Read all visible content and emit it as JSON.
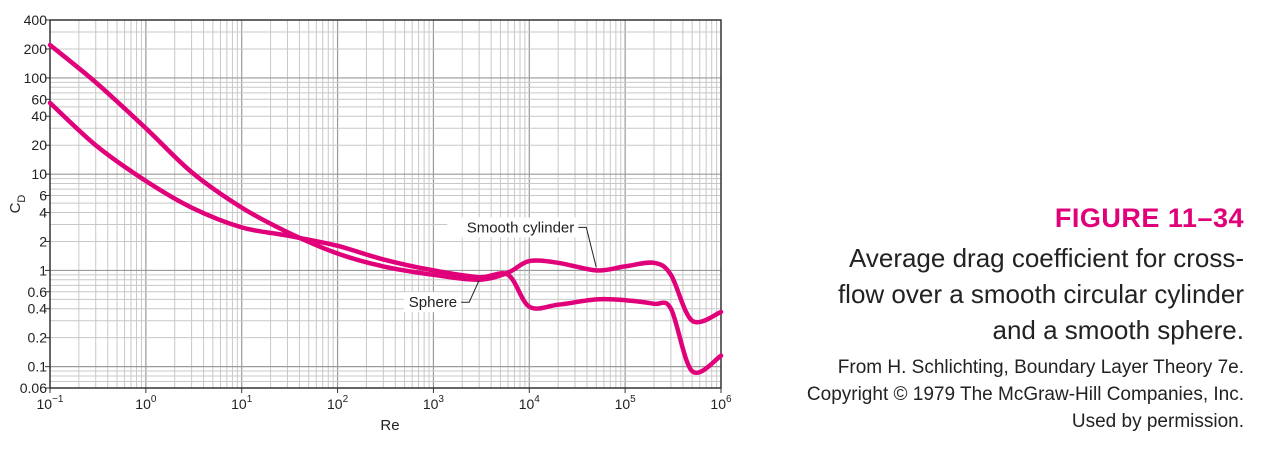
{
  "chart_data": {
    "type": "line",
    "x_scale": "log",
    "y_scale": "log",
    "xlim": [
      0.1,
      1000000
    ],
    "ylim": [
      0.06,
      400
    ],
    "xlabel": "Re",
    "ylabel": "CD",
    "x_ticks": [
      {
        "value": 0.1,
        "base": "10",
        "exp": "−1"
      },
      {
        "value": 1,
        "base": "10",
        "exp": "0"
      },
      {
        "value": 10,
        "base": "10",
        "exp": "1"
      },
      {
        "value": 100,
        "base": "10",
        "exp": "2"
      },
      {
        "value": 1000,
        "base": "10",
        "exp": "3"
      },
      {
        "value": 10000,
        "base": "10",
        "exp": "4"
      },
      {
        "value": 100000,
        "base": "10",
        "exp": "5"
      },
      {
        "value": 1000000,
        "base": "10",
        "exp": "6"
      }
    ],
    "y_ticks": [
      {
        "value": 400,
        "label": "400"
      },
      {
        "value": 200,
        "label": "200"
      },
      {
        "value": 100,
        "label": "100"
      },
      {
        "value": 60,
        "label": "60"
      },
      {
        "value": 40,
        "label": "40"
      },
      {
        "value": 20,
        "label": "20"
      },
      {
        "value": 10,
        "label": "10"
      },
      {
        "value": 6,
        "label": "6"
      },
      {
        "value": 4,
        "label": "4"
      },
      {
        "value": 2,
        "label": "2"
      },
      {
        "value": 1,
        "label": "1"
      },
      {
        "value": 0.6,
        "label": "0.6"
      },
      {
        "value": 0.4,
        "label": "0.4"
      },
      {
        "value": 0.2,
        "label": "0.2"
      },
      {
        "value": 0.1,
        "label": "0.1"
      },
      {
        "value": 0.06,
        "label": "0.06"
      }
    ],
    "grid": true,
    "line_color": "#e0007a",
    "series": [
      {
        "name": "Smooth cylinder",
        "points": [
          {
            "x": 0.1,
            "y": 220
          },
          {
            "x": 0.3,
            "y": 90
          },
          {
            "x": 1,
            "y": 30
          },
          {
            "x": 3,
            "y": 10.5
          },
          {
            "x": 10,
            "y": 4.5
          },
          {
            "x": 30,
            "y": 2.5
          },
          {
            "x": 100,
            "y": 1.5
          },
          {
            "x": 300,
            "y": 1.1
          },
          {
            "x": 1000,
            "y": 0.9
          },
          {
            "x": 3000,
            "y": 0.8
          },
          {
            "x": 6000,
            "y": 0.95
          },
          {
            "x": 10000,
            "y": 1.25
          },
          {
            "x": 20000,
            "y": 1.2
          },
          {
            "x": 50000,
            "y": 1.0
          },
          {
            "x": 100000,
            "y": 1.1
          },
          {
            "x": 200000,
            "y": 1.2
          },
          {
            "x": 300000,
            "y": 0.9
          },
          {
            "x": 500000,
            "y": 0.3
          },
          {
            "x": 1000000,
            "y": 0.37
          }
        ]
      },
      {
        "name": "Sphere",
        "points": [
          {
            "x": 0.1,
            "y": 55
          },
          {
            "x": 0.3,
            "y": 20
          },
          {
            "x": 1,
            "y": 8.5
          },
          {
            "x": 3,
            "y": 4.5
          },
          {
            "x": 10,
            "y": 2.8
          },
          {
            "x": 30,
            "y": 2.3
          },
          {
            "x": 100,
            "y": 1.8
          },
          {
            "x": 300,
            "y": 1.3
          },
          {
            "x": 1000,
            "y": 1.0
          },
          {
            "x": 3000,
            "y": 0.85
          },
          {
            "x": 6000,
            "y": 0.9
          },
          {
            "x": 10000,
            "y": 0.42
          },
          {
            "x": 20000,
            "y": 0.44
          },
          {
            "x": 50000,
            "y": 0.5
          },
          {
            "x": 100000,
            "y": 0.49
          },
          {
            "x": 200000,
            "y": 0.45
          },
          {
            "x": 300000,
            "y": 0.4
          },
          {
            "x": 500000,
            "y": 0.09
          },
          {
            "x": 1000000,
            "y": 0.13
          }
        ]
      }
    ],
    "annotations": [
      {
        "text": "Smooth cylinder",
        "series": "Smooth cylinder",
        "at_x": 50000
      },
      {
        "text": "Sphere",
        "series": "Sphere",
        "at_x": 3000
      }
    ]
  },
  "caption": {
    "figure_label": "FIGURE 11–34",
    "text": "Average drag coefficient for cross-flow over a smooth circular cylinder and a smooth sphere.",
    "credit": "From H. Schlichting, Boundary Layer Theory 7e. Copyright © 1979 The McGraw-Hill Companies, Inc. Used by permission."
  }
}
